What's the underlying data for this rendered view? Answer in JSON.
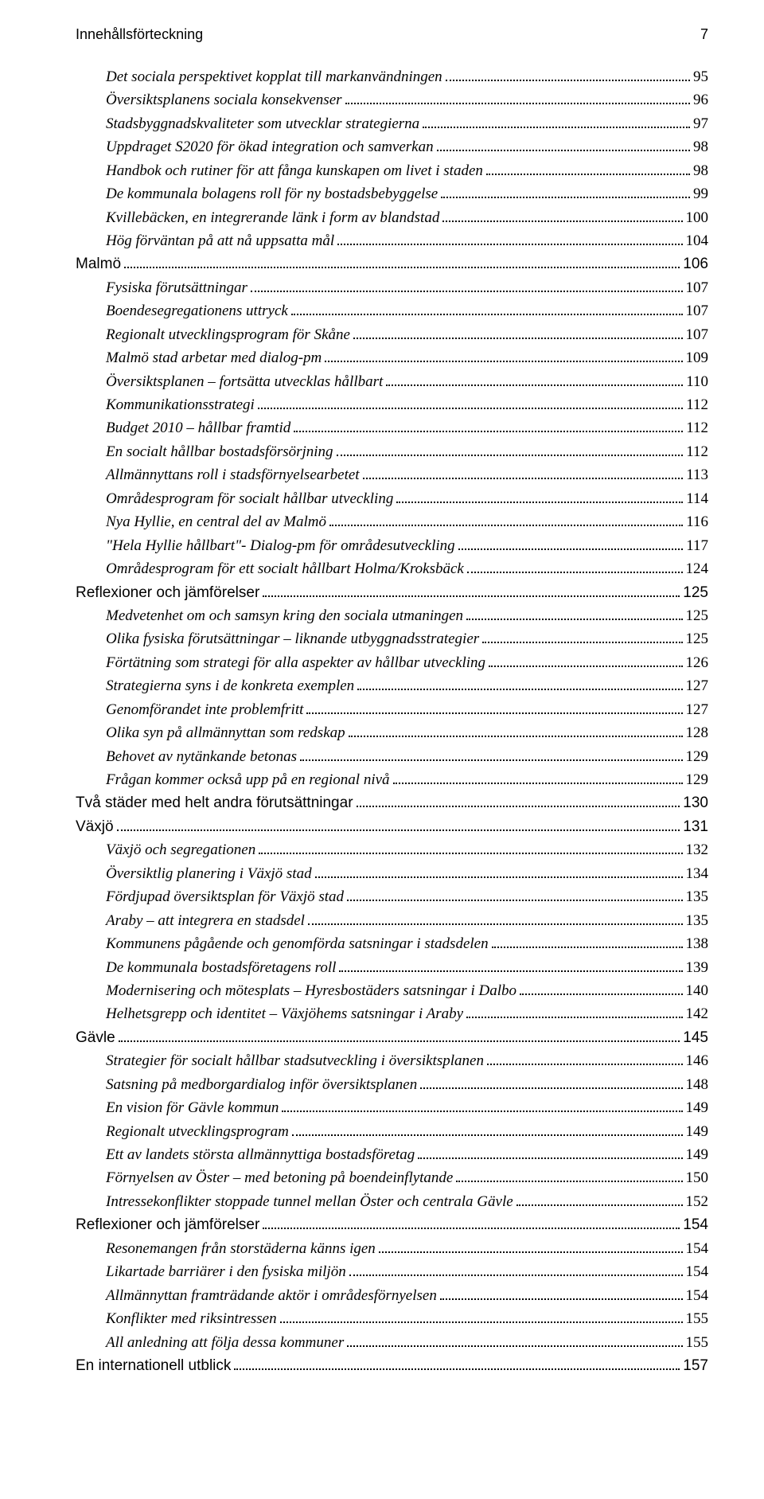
{
  "header": {
    "title": "Innehållsförteckning",
    "pageNumber": "7"
  },
  "toc": [
    {
      "title": "Det sociala perspektivet kopplat till markanvändningen",
      "page": "95",
      "indent": 1,
      "italic": true,
      "sans": false
    },
    {
      "title": "Översiktsplanens sociala konsekvenser",
      "page": "96",
      "indent": 1,
      "italic": true,
      "sans": false
    },
    {
      "title": "Stadsbyggnadskvaliteter som utvecklar strategierna",
      "page": "97",
      "indent": 1,
      "italic": true,
      "sans": false
    },
    {
      "title": "Uppdraget S2020 för ökad integration och samverkan",
      "page": "98",
      "indent": 1,
      "italic": true,
      "sans": false
    },
    {
      "title": "Handbok och rutiner för att fånga kunskapen om livet i staden",
      "page": "98",
      "indent": 1,
      "italic": true,
      "sans": false
    },
    {
      "title": "De kommunala bolagens roll för ny bostadsbebyggelse",
      "page": "99",
      "indent": 1,
      "italic": true,
      "sans": false
    },
    {
      "title": "Kvillebäcken, en integrerande länk i form av blandstad",
      "page": "100",
      "indent": 1,
      "italic": true,
      "sans": false
    },
    {
      "title": "Hög förväntan på att nå uppsatta mål",
      "page": "104",
      "indent": 1,
      "italic": true,
      "sans": false
    },
    {
      "title": "Malmö",
      "page": "106",
      "indent": 0,
      "italic": false,
      "sans": true
    },
    {
      "title": "Fysiska förutsättningar",
      "page": "107",
      "indent": 1,
      "italic": true,
      "sans": false
    },
    {
      "title": "Boendesegregationens uttryck",
      "page": "107",
      "indent": 1,
      "italic": true,
      "sans": false
    },
    {
      "title": "Regionalt utvecklingsprogram för Skåne",
      "page": "107",
      "indent": 1,
      "italic": true,
      "sans": false
    },
    {
      "title": "Malmö stad arbetar med dialog-pm",
      "page": "109",
      "indent": 1,
      "italic": true,
      "sans": false
    },
    {
      "title": "Översiktsplanen – fortsätta utvecklas hållbart",
      "page": "110",
      "indent": 1,
      "italic": true,
      "sans": false
    },
    {
      "title": "Kommunikationsstrategi",
      "page": "112",
      "indent": 1,
      "italic": true,
      "sans": false
    },
    {
      "title": "Budget 2010 – hållbar framtid",
      "page": "112",
      "indent": 1,
      "italic": true,
      "sans": false
    },
    {
      "title": "En socialt hållbar bostadsförsörjning",
      "page": "112",
      "indent": 1,
      "italic": true,
      "sans": false
    },
    {
      "title": "Allmännyttans roll i stadsförnyelsearbetet",
      "page": "113",
      "indent": 1,
      "italic": true,
      "sans": false
    },
    {
      "title": "Områdesprogram för socialt hållbar utveckling",
      "page": "114",
      "indent": 1,
      "italic": true,
      "sans": false
    },
    {
      "title": "Nya Hyllie, en central del av Malmö",
      "page": "116",
      "indent": 1,
      "italic": true,
      "sans": false
    },
    {
      "title": "\"Hela Hyllie hållbart\"- Dialog-pm för områdesutveckling",
      "page": "117",
      "indent": 1,
      "italic": true,
      "sans": false
    },
    {
      "title": "Områdesprogram för ett socialt hållbart Holma/Kroksbäck",
      "page": "124",
      "indent": 1,
      "italic": true,
      "sans": false
    },
    {
      "title": "Reflexioner och jämförelser",
      "page": "125",
      "indent": 0,
      "italic": false,
      "sans": true
    },
    {
      "title": "Medvetenhet om och samsyn kring den sociala utmaningen",
      "page": "125",
      "indent": 1,
      "italic": true,
      "sans": false
    },
    {
      "title": "Olika fysiska förutsättningar – liknande utbyggnadsstrategier",
      "page": "125",
      "indent": 1,
      "italic": true,
      "sans": false
    },
    {
      "title": "Förtätning som strategi för alla aspekter av hållbar utveckling",
      "page": "126",
      "indent": 1,
      "italic": true,
      "sans": false
    },
    {
      "title": "Strategierna syns i de konkreta exemplen",
      "page": "127",
      "indent": 1,
      "italic": true,
      "sans": false
    },
    {
      "title": "Genomförandet inte problemfritt",
      "page": "127",
      "indent": 1,
      "italic": true,
      "sans": false
    },
    {
      "title": "Olika syn på allmännyttan som redskap",
      "page": "128",
      "indent": 1,
      "italic": true,
      "sans": false
    },
    {
      "title": "Behovet av nytänkande betonas",
      "page": "129",
      "indent": 1,
      "italic": true,
      "sans": false
    },
    {
      "title": "Frågan kommer också upp på en regional nivå",
      "page": "129",
      "indent": 1,
      "italic": true,
      "sans": false
    },
    {
      "title": "Två städer med helt andra förutsättningar",
      "page": "130",
      "indent": 0,
      "italic": false,
      "sans": true
    },
    {
      "title": "Växjö",
      "page": "131",
      "indent": 0,
      "italic": false,
      "sans": true
    },
    {
      "title": "Växjö och segregationen",
      "page": "132",
      "indent": 1,
      "italic": true,
      "sans": false
    },
    {
      "title": "Översiktlig planering i Växjö stad",
      "page": "134",
      "indent": 1,
      "italic": true,
      "sans": false
    },
    {
      "title": "Fördjupad översiktsplan för Växjö stad",
      "page": "135",
      "indent": 1,
      "italic": true,
      "sans": false
    },
    {
      "title": "Araby – att integrera en stadsdel",
      "page": "135",
      "indent": 1,
      "italic": true,
      "sans": false
    },
    {
      "title": "Kommunens pågående och genomförda satsningar i stadsdelen",
      "page": "138",
      "indent": 1,
      "italic": true,
      "sans": false
    },
    {
      "title": "De kommunala bostadsföretagens roll",
      "page": "139",
      "indent": 1,
      "italic": true,
      "sans": false
    },
    {
      "title": "Modernisering och mötesplats – Hyresbostäders satsningar i Dalbo",
      "page": "140",
      "indent": 1,
      "italic": true,
      "sans": false
    },
    {
      "title": "Helhetsgrepp och identitet – Växjöhems satsningar i Araby",
      "page": "142",
      "indent": 1,
      "italic": true,
      "sans": false
    },
    {
      "title": "Gävle",
      "page": "145",
      "indent": 0,
      "italic": false,
      "sans": true
    },
    {
      "title": "Strategier för socialt hållbar stadsutveckling i översiktsplanen",
      "page": "146",
      "indent": 1,
      "italic": true,
      "sans": false
    },
    {
      "title": "Satsning på medborgardialog inför översiktsplanen",
      "page": "148",
      "indent": 1,
      "italic": true,
      "sans": false
    },
    {
      "title": "En vision för Gävle kommun",
      "page": "149",
      "indent": 1,
      "italic": true,
      "sans": false
    },
    {
      "title": "Regionalt utvecklingsprogram",
      "page": "149",
      "indent": 1,
      "italic": true,
      "sans": false
    },
    {
      "title": "Ett av landets största allmännyttiga bostadsföretag",
      "page": "149",
      "indent": 1,
      "italic": true,
      "sans": false
    },
    {
      "title": "Förnyelsen av Öster – med betoning på boendeinflytande",
      "page": "150",
      "indent": 1,
      "italic": true,
      "sans": false
    },
    {
      "title": "Intressekonflikter stoppade tunnel mellan Öster och centrala Gävle",
      "page": "152",
      "indent": 1,
      "italic": true,
      "sans": false
    },
    {
      "title": "Reflexioner och jämförelser",
      "page": "154",
      "indent": 0,
      "italic": false,
      "sans": true
    },
    {
      "title": "Resonemangen från storstäderna känns igen",
      "page": "154",
      "indent": 1,
      "italic": true,
      "sans": false
    },
    {
      "title": "Likartade barriärer i den fysiska miljön",
      "page": "154",
      "indent": 1,
      "italic": true,
      "sans": false
    },
    {
      "title": "Allmännyttan framträdande aktör i områdesförnyelsen",
      "page": "154",
      "indent": 1,
      "italic": true,
      "sans": false
    },
    {
      "title": "Konflikter med riksintressen",
      "page": "155",
      "indent": 1,
      "italic": true,
      "sans": false
    },
    {
      "title": "All anledning att följa dessa kommuner",
      "page": "155",
      "indent": 1,
      "italic": true,
      "sans": false
    },
    {
      "title": "En internationell utblick",
      "page": "157",
      "indent": 0,
      "italic": false,
      "sans": true
    }
  ]
}
